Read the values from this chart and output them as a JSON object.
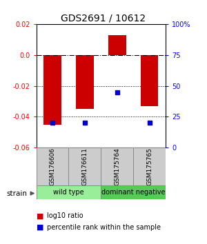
{
  "title": "GDS2691 / 10612",
  "samples": [
    "GSM176606",
    "GSM176611",
    "GSM175764",
    "GSM175765"
  ],
  "log10_ratio": [
    -0.045,
    -0.035,
    0.013,
    -0.033
  ],
  "percentile_rank": [
    20,
    20,
    45,
    20
  ],
  "ylim_left": [
    -0.06,
    0.02
  ],
  "ylim_right": [
    0,
    100
  ],
  "yticks_left": [
    0.02,
    0.0,
    -0.02,
    -0.04,
    -0.06
  ],
  "yticks_right": [
    100,
    75,
    50,
    25,
    0
  ],
  "ytick_right_labels": [
    "100%",
    "75",
    "50",
    "25",
    "0"
  ],
  "bar_color": "#cc0000",
  "dot_color": "#0000cc",
  "group_colors": [
    "#99ee99",
    "#55cc55"
  ],
  "group_labels": [
    "wild type",
    "dominant negative"
  ],
  "group_ranges": [
    [
      0,
      1
    ],
    [
      2,
      3
    ]
  ],
  "legend_bar_label": "log10 ratio",
  "legend_dot_label": "percentile rank within the sample",
  "strain_label": "strain",
  "bar_width": 0.55,
  "plot_bg": "#ffffff"
}
